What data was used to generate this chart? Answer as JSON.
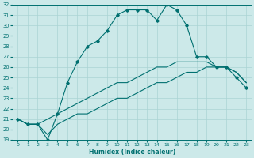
{
  "xlabel": "Humidex (Indice chaleur)",
  "xlim": [
    -0.5,
    23.5
  ],
  "ylim": [
    19,
    32
  ],
  "xticks": [
    0,
    1,
    2,
    3,
    4,
    5,
    6,
    7,
    8,
    9,
    10,
    11,
    12,
    13,
    14,
    15,
    16,
    17,
    18,
    19,
    20,
    21,
    22,
    23
  ],
  "yticks": [
    19,
    20,
    21,
    22,
    23,
    24,
    25,
    26,
    27,
    28,
    29,
    30,
    31,
    32
  ],
  "bg_color": "#cce9e9",
  "grid_color": "#aad4d4",
  "line_color": "#007070",
  "line1_x": [
    0,
    1,
    2,
    3,
    4,
    5,
    6,
    7,
    8,
    9,
    10,
    11,
    12,
    13,
    14,
    15,
    16,
    17,
    18,
    19,
    20,
    21,
    22,
    23
  ],
  "line1_y": [
    21.0,
    20.5,
    20.5,
    19.0,
    21.5,
    24.5,
    26.5,
    28.0,
    28.5,
    29.5,
    31.0,
    31.5,
    31.5,
    31.5,
    30.5,
    32.0,
    31.5,
    30.0,
    27.0,
    27.0,
    26.0,
    26.0,
    25.0,
    24.0
  ],
  "line2_x": [
    0,
    1,
    2,
    3,
    4,
    5,
    6,
    7,
    8,
    9,
    10,
    11,
    12,
    13,
    14,
    15,
    16,
    17,
    18,
    19,
    20,
    21,
    22,
    23
  ],
  "line2_y": [
    21.0,
    20.5,
    20.5,
    21.0,
    21.5,
    22.0,
    22.5,
    23.0,
    23.5,
    24.0,
    24.5,
    24.5,
    25.0,
    25.5,
    26.0,
    26.0,
    26.5,
    26.5,
    26.5,
    26.5,
    26.0,
    26.0,
    25.5,
    24.5
  ],
  "line3_x": [
    0,
    1,
    2,
    3,
    4,
    5,
    6,
    7,
    8,
    9,
    10,
    11,
    12,
    13,
    14,
    15,
    16,
    17,
    18,
    19,
    20,
    21,
    22,
    23
  ],
  "line3_y": [
    21.0,
    20.5,
    20.5,
    19.5,
    20.5,
    21.0,
    21.5,
    21.5,
    22.0,
    22.5,
    23.0,
    23.0,
    23.5,
    24.0,
    24.5,
    24.5,
    25.0,
    25.5,
    25.5,
    26.0,
    26.0,
    26.0,
    25.5,
    24.5
  ]
}
